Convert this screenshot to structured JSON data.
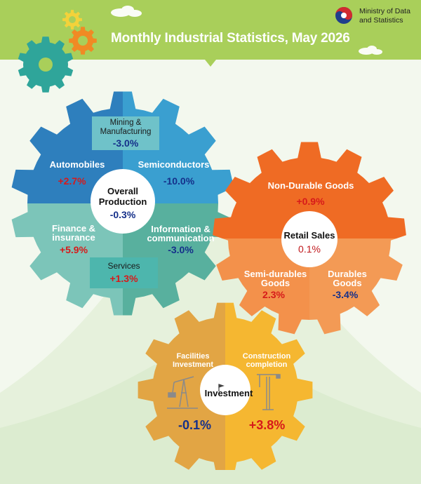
{
  "header": {
    "title": "Monthly Industrial Statistics, May 2026",
    "logo_line1": "Ministry of Data",
    "logo_line2": "and Statistics"
  },
  "production": {
    "center_label_line1": "Overall",
    "center_label_line2": "Production",
    "center_value": "-0.3%",
    "mining_label_line1": "Mining &",
    "mining_label_line2": "Manufacturing",
    "mining_value": "-3.0%",
    "automobiles_label": "Automobiles",
    "automobiles_value": "+2.7%",
    "semiconductors_label": "Semiconductors",
    "semiconductors_value": "-10.0%",
    "finance_label_line1": "Finance &",
    "finance_label_line2": "insurance",
    "finance_value": "+5.9%",
    "info_label_line1": "Information &",
    "info_label_line2": "communication",
    "info_value": "-3.0%",
    "services_label": "Services",
    "services_value": "+1.3%"
  },
  "retail": {
    "center_label": "Retail Sales",
    "center_value": "0.1%",
    "nondurable_label": "Non-Durable Goods",
    "nondurable_value": "+0.9%",
    "semidurable_label_line1": "Semi-durables",
    "semidurable_label_line2": "Goods",
    "semidurable_value": "2.3%",
    "durable_label_line1": "Durables",
    "durable_label_line2": "Goods",
    "durable_value": "-3.4%"
  },
  "investment": {
    "center_label": "Investment",
    "facilities_label_line1": "Facilities",
    "facilities_label_line2": "Investment",
    "facilities_value": "-0.1%",
    "construction_label_line1": "Construction",
    "construction_label_line2": "completion",
    "construction_value": "+3.8%"
  },
  "colors": {
    "header_green": "#a9cf5a",
    "blue_dark": "#2e7fbd",
    "blue_mid": "#3a9fd0",
    "teal_light": "#7cc5b9",
    "teal_mid": "#58b09e",
    "services_box": "#4db6ad",
    "orange_dark": "#ef6b24",
    "orange_light": "#f3914b",
    "gold_left": "#e2a544",
    "gold_right": "#f5b731",
    "negative_text": "#15308a",
    "positive_text": "#d71a1a"
  }
}
